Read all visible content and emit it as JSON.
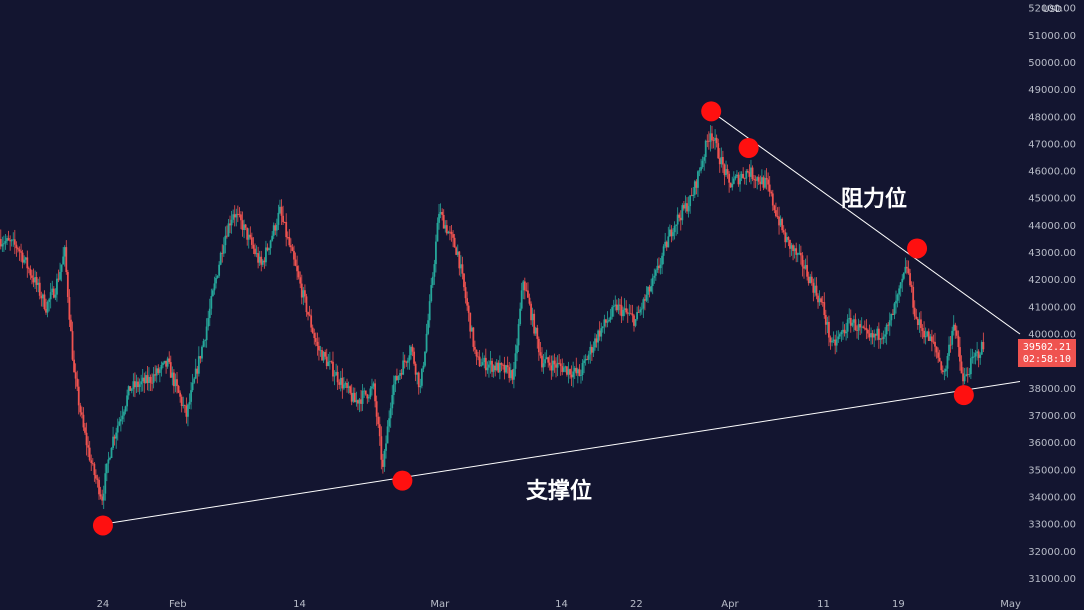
{
  "chart_data": {
    "type": "candlestick",
    "currency": "USD",
    "y_axis": {
      "min": 30500,
      "max": 52300,
      "ticks": [
        "31000.00",
        "32000.00",
        "33000.00",
        "34000.00",
        "35000.00",
        "36000.00",
        "37000.00",
        "38000.00",
        "39000.00",
        "40000.00",
        "41000.00",
        "42000.00",
        "43000.00",
        "44000.00",
        "45000.00",
        "46000.00",
        "47000.00",
        "48000.00",
        "49000.00",
        "50000.00",
        "51000.00",
        "52000.00"
      ],
      "tick_values": [
        31000,
        32000,
        33000,
        34000,
        35000,
        36000,
        37000,
        38000,
        39000,
        40000,
        41000,
        42000,
        43000,
        44000,
        45000,
        46000,
        47000,
        48000,
        49000,
        50000,
        51000,
        52000
      ]
    },
    "x_axis": {
      "start": "2021-01-13",
      "end": "2021-05-02",
      "tick_labels": [
        "24",
        "Feb",
        "14",
        "Mar",
        "14",
        "22",
        "Apr",
        "11",
        "19",
        "May"
      ],
      "tick_dates": [
        "2021-01-24",
        "2021-02-01",
        "2021-02-14",
        "2021-03-01",
        "2021-03-14",
        "2021-03-22",
        "2021-04-01",
        "2021-04-11",
        "2021-04-19",
        "2021-05-01"
      ]
    },
    "price_path": [
      [
        "2021-01-13",
        43500
      ],
      [
        "2021-01-15",
        43200
      ],
      [
        "2021-01-17",
        41800
      ],
      [
        "2021-01-18",
        41000
      ],
      [
        "2021-01-19",
        41700
      ],
      [
        "2021-01-20",
        43000
      ],
      [
        "2021-01-21",
        38500
      ],
      [
        "2021-01-22",
        36500
      ],
      [
        "2021-01-23",
        35000
      ],
      [
        "2021-01-24",
        34000
      ],
      [
        "2021-01-25",
        36000
      ],
      [
        "2021-01-27",
        38000
      ],
      [
        "2021-01-29",
        38300
      ],
      [
        "2021-01-31",
        38900
      ],
      [
        "2021-02-02",
        37000
      ],
      [
        "2021-02-04",
        40000
      ],
      [
        "2021-02-06",
        43500
      ],
      [
        "2021-02-07",
        44500
      ],
      [
        "2021-02-08",
        44000
      ],
      [
        "2021-02-10",
        42500
      ],
      [
        "2021-02-12",
        44500
      ],
      [
        "2021-02-14",
        42000
      ],
      [
        "2021-02-16",
        39500
      ],
      [
        "2021-02-18",
        38500
      ],
      [
        "2021-02-20",
        37500
      ],
      [
        "2021-02-22",
        38000
      ],
      [
        "2021-02-23",
        35000
      ],
      [
        "2021-02-24",
        38000
      ],
      [
        "2021-02-26",
        39500
      ],
      [
        "2021-02-27",
        38000
      ],
      [
        "2021-02-28",
        41000
      ],
      [
        "2021-03-01",
        44500
      ],
      [
        "2021-03-03",
        43000
      ],
      [
        "2021-03-05",
        39000
      ],
      [
        "2021-03-07",
        38800
      ],
      [
        "2021-03-09",
        38500
      ],
      [
        "2021-03-10",
        42000
      ],
      [
        "2021-03-12",
        39000
      ],
      [
        "2021-03-14",
        38800
      ],
      [
        "2021-03-16",
        38500
      ],
      [
        "2021-03-18",
        40000
      ],
      [
        "2021-03-20",
        41000
      ],
      [
        "2021-03-22",
        40500
      ],
      [
        "2021-03-24",
        42000
      ],
      [
        "2021-03-26",
        44000
      ],
      [
        "2021-03-28",
        45000
      ],
      [
        "2021-03-30",
        47500
      ],
      [
        "2021-04-01",
        45500
      ],
      [
        "2021-04-03",
        46000
      ],
      [
        "2021-04-05",
        45500
      ],
      [
        "2021-04-07",
        43500
      ],
      [
        "2021-04-09",
        42500
      ],
      [
        "2021-04-11",
        41000
      ],
      [
        "2021-04-12",
        39500
      ],
      [
        "2021-04-14",
        40500
      ],
      [
        "2021-04-16",
        39800
      ],
      [
        "2021-04-18",
        40200
      ],
      [
        "2021-04-19",
        41300
      ],
      [
        "2021-04-20",
        42500
      ],
      [
        "2021-04-21",
        40500
      ],
      [
        "2021-04-23",
        39500
      ],
      [
        "2021-04-24",
        38500
      ],
      [
        "2021-04-25",
        40500
      ],
      [
        "2021-04-26",
        38200
      ],
      [
        "2021-04-27",
        39000
      ],
      [
        "2021-04-28",
        39500
      ]
    ],
    "last_price": "39502.21",
    "countdown": "02:58:10",
    "trendlines": [
      {
        "name": "resistance",
        "from": [
          "2021-03-30",
          48200
        ],
        "to": [
          "2021-05-02",
          40000
        ]
      },
      {
        "name": "support",
        "from": [
          "2021-01-24",
          33000
        ],
        "to": [
          "2021-05-02",
          38250
        ]
      }
    ],
    "markers": [
      [
        "2021-03-30",
        48200
      ],
      [
        "2021-04-03",
        46850
      ],
      [
        "2021-04-21",
        43150
      ],
      [
        "2021-04-26",
        37750
      ],
      [
        "2021-02-25",
        34600
      ],
      [
        "2021-01-24",
        32950
      ]
    ],
    "annotations": {
      "resistance_label": "阻力位",
      "support_label": "支撑位"
    },
    "colors": {
      "background": "#131530",
      "up": "#26a69a",
      "down": "#ef5350",
      "trendline": "#ffffff",
      "marker": "#ff1010",
      "price_badge": "#ef5350"
    }
  }
}
